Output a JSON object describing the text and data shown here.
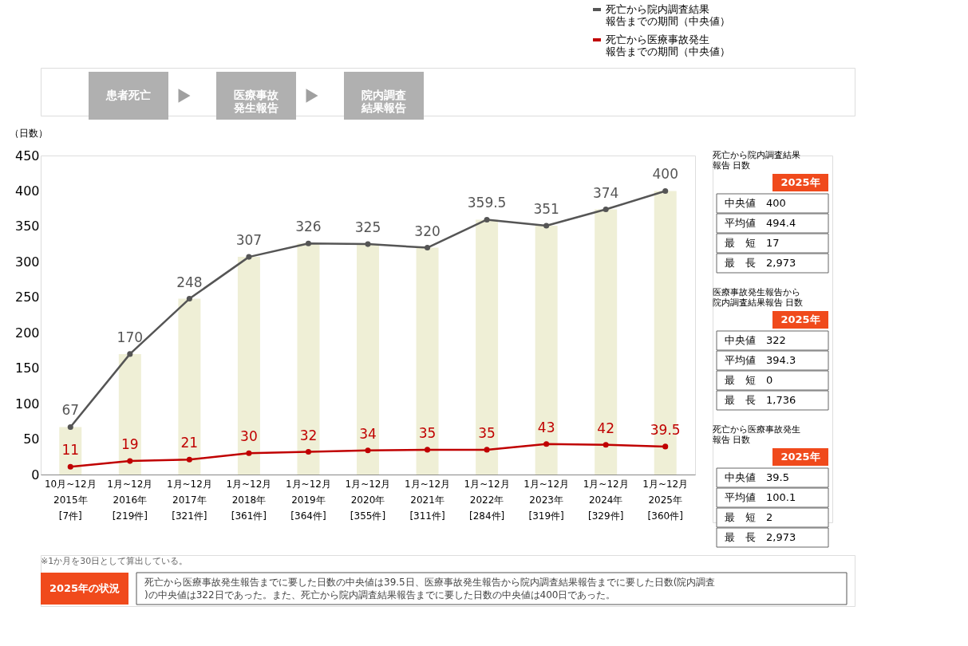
{
  "chart_data": {
    "type": "line",
    "categories": [
      "10月~12月\n2015年\n[7件]",
      "1月~12月\n2016年\n[219件]",
      "1月~12月\n2017年\n[321件]",
      "1月~12月\n2018年\n[361件]",
      "1月~12月\n2019年\n[364件]",
      "1月~12月\n2020年\n[355件]",
      "1月~12月\n2021年\n[311件]",
      "1月~12月\n2022年\n[284件]",
      "1月~12月\n2023年\n[319件]",
      "1月~12月\n2024年\n[329件]",
      "1月~12月\n2025年\n[360件]"
    ],
    "series": [
      {
        "type": "bar",
        "color": "#efefd6",
        "values": [
          67,
          170,
          248,
          307,
          326,
          325,
          320,
          359.5,
          351,
          374,
          400
        ],
        "value_labels": [
          null,
          null,
          null,
          null,
          null,
          null,
          null,
          null,
          null,
          null,
          null
        ]
      },
      {
        "name": "死亡から院内調査結果報告までの期間（中央値）",
        "color": "#555555",
        "values": [
          67,
          170,
          248,
          307,
          326,
          325,
          320,
          359.5,
          351,
          374,
          400
        ]
      },
      {
        "name": "死亡から医療事故発生報告までの期間（中央値）",
        "color": "#c00000",
        "values": [
          11,
          19,
          21,
          30,
          32,
          34,
          35,
          35,
          43,
          42,
          39.5
        ]
      }
    ],
    "ylabel": "（日数）",
    "ylim": [
      0,
      450
    ],
    "yticks": [
      0,
      50,
      100,
      150,
      200,
      250,
      300,
      350,
      400,
      450
    ],
    "grid": false,
    "legend": "top right",
    "marker": "circle",
    "line_style": "solid",
    "data_labels": true,
    "annotations": [
      "患者死亡",
      "医療事故発生報告",
      "院内調査結果報告",
      "死亡から院内調査結果報告 日数",
      "2025年",
      "中央値　400",
      "平均値　494.4",
      "最　短　17",
      "最　長　2,973",
      "医療事故発生報告から院内調査結果報告 日数",
      "2025年",
      "中央値　322",
      "平均値　394.3",
      "最　短　0",
      "最　長　1,736",
      "死亡から医療事故発生報告 日数",
      "2025年",
      "中央値　39.5",
      "平均値　100.1",
      "最　短　2",
      "最　長　2,973",
      "※1か月を30日として算出している。",
      "2025年の状況",
      "死亡から医療事故発生報告までに要した日数の中央値は39.5日、医療事故発生報告から院内調査結果報告までに要した日数(院内調査)の中央値は322日であった。また、死亡から院内調査結果報告までに要した日数の中央値は400日であった。"
    ]
  }
}
